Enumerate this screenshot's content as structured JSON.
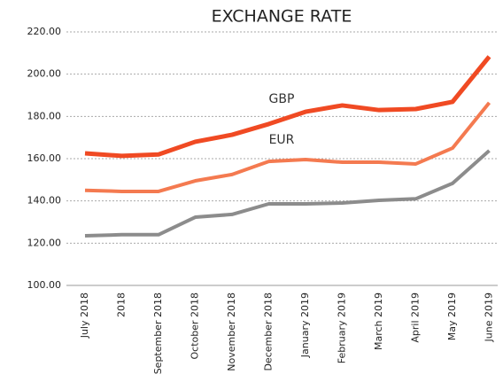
{
  "chart_data": {
    "type": "line",
    "title": "EXCHANGE RATE",
    "categories": [
      "July 2018",
      "2018",
      "September 2018",
      "October 2018",
      "November 2018",
      "December 2018",
      "January 2019",
      "February 2019",
      "March 2019",
      "April 2019",
      "May 2019",
      "June 2019"
    ],
    "series": [
      {
        "name": "GBP",
        "color": "#f04a23",
        "values": [
          162.5,
          161.3,
          162,
          168,
          171.3,
          176.4,
          182.2,
          185.2,
          183,
          183.5,
          186.9,
          208.3
        ]
      },
      {
        "name": "EUR",
        "color": "#f47a50",
        "values": [
          145,
          144.5,
          144.5,
          149.5,
          152.5,
          158.7,
          159.6,
          158.3,
          158.3,
          157.5,
          165,
          186.5
        ]
      },
      {
        "color": "#8c8c8c",
        "values": [
          123.5,
          124,
          124,
          132.3,
          133.6,
          138.6,
          138.6,
          139,
          140.3,
          141,
          148.3,
          163.8
        ]
      }
    ],
    "ylim": [
      100,
      220
    ],
    "yticks": [
      {
        "value": 100,
        "label": "100.00"
      },
      {
        "value": 120,
        "label": "120.00"
      },
      {
        "value": 140,
        "label": "140.00"
      },
      {
        "value": 160,
        "label": "160.00"
      },
      {
        "value": 180,
        "label": "180.00"
      },
      {
        "value": 200,
        "label": "200.00"
      },
      {
        "value": 220,
        "label": "220.00"
      }
    ],
    "grid": true
  }
}
